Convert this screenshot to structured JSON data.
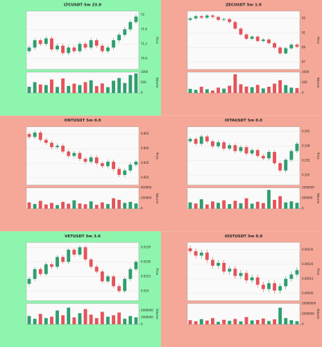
{
  "chart_data": [
    {
      "type": "candlestick",
      "title": "LTCUSDT 5m 23.0",
      "background": "#8ef5ae",
      "up_color": "#2e9e6e",
      "down_color": "#e4545a",
      "ylabel": "Price",
      "volume_label": "Volume",
      "ylim": [
        70.5,
        72.1
      ],
      "yticks": [
        70.8,
        71.2,
        71.6,
        72.0
      ],
      "volume_ylim": [
        0,
        1000
      ],
      "volume_ticks": [
        0,
        500,
        1000
      ],
      "open": [
        71.0,
        71.1,
        71.3,
        71.2,
        71.35,
        71.05,
        71.15,
        70.95,
        71.1,
        71.0,
        71.2,
        71.1,
        71.3,
        71.15,
        71.0,
        71.1,
        71.3,
        71.45,
        71.6,
        71.8
      ],
      "high": [
        71.16,
        71.36,
        71.36,
        71.41,
        71.41,
        71.21,
        71.21,
        71.16,
        71.16,
        71.26,
        71.26,
        71.36,
        71.36,
        71.21,
        71.16,
        71.36,
        71.51,
        71.66,
        71.86,
        72.01
      ],
      "low": [
        70.94,
        71.04,
        71.14,
        71.14,
        70.99,
        70.99,
        70.89,
        70.89,
        70.94,
        70.94,
        71.04,
        71.04,
        71.09,
        70.94,
        70.94,
        71.04,
        71.24,
        71.39,
        71.54,
        71.74
      ],
      "close": [
        71.1,
        71.3,
        71.2,
        71.35,
        71.05,
        71.15,
        70.95,
        71.1,
        71.0,
        71.2,
        71.1,
        71.3,
        71.15,
        71.0,
        71.1,
        71.3,
        71.45,
        71.6,
        71.8,
        71.95
      ],
      "volume": [
        300,
        520,
        410,
        380,
        650,
        290,
        700,
        340,
        450,
        380,
        520,
        610,
        330,
        460,
        280,
        590,
        720,
        480,
        860,
        940
      ]
    },
    {
      "type": "candlestick",
      "title": "ZECUSDT 5m 1.0",
      "background": "#f5a898",
      "up_color": "#2e9e6e",
      "down_color": "#e4545a",
      "ylabel": "Price",
      "volume_label": "Volume",
      "ylim": [
        86,
        94
      ],
      "yticks": [
        87,
        89,
        91,
        93
      ],
      "volume_ylim": [
        0,
        1000
      ],
      "volume_ticks": [
        0,
        500,
        1000
      ],
      "open": [
        92.8,
        93.0,
        93.3,
        93.1,
        93.4,
        93.2,
        92.8,
        92.9,
        92.5,
        91.6,
        90.8,
        90.2,
        90.5,
        89.9,
        90.1,
        89.6,
        89.0,
        88.2,
        88.9,
        89.4
      ],
      "high": [
        93.2,
        93.5,
        93.5,
        93.6,
        93.6,
        93.4,
        93.1,
        93.1,
        92.7,
        91.8,
        91.0,
        90.7,
        90.7,
        90.3,
        90.3,
        89.8,
        89.2,
        89.1,
        89.6,
        89.6
      ],
      "low": [
        92.6,
        92.8,
        92.9,
        92.9,
        93.0,
        92.6,
        92.6,
        92.3,
        91.4,
        90.6,
        90.0,
        90.0,
        89.7,
        89.7,
        89.4,
        88.8,
        88.0,
        88.0,
        88.7,
        88.9
      ],
      "close": [
        93.0,
        93.3,
        93.1,
        93.4,
        93.2,
        92.8,
        92.9,
        92.5,
        91.6,
        90.8,
        90.2,
        90.5,
        89.9,
        90.1,
        89.6,
        89.0,
        88.2,
        88.9,
        89.4,
        89.1
      ],
      "volume": [
        200,
        150,
        300,
        180,
        120,
        260,
        210,
        350,
        900,
        420,
        310,
        280,
        390,
        220,
        300,
        450,
        620,
        380,
        260,
        240
      ]
    },
    {
      "type": "candlestick",
      "title": "ONTUSDT 5m 0.0",
      "background": "#f5a898",
      "up_color": "#2e9e6e",
      "down_color": "#e4545a",
      "ylabel": "Price",
      "volume_label": "Volume",
      "ylim": [
        0.82,
        0.86
      ],
      "yticks": [
        0.825,
        0.835,
        0.845,
        0.855
      ],
      "volume_ylim": [
        0,
        400000
      ],
      "volume_ticks": [
        0,
        200000,
        400000
      ],
      "open": [
        0.855,
        0.853,
        0.856,
        0.851,
        0.849,
        0.846,
        0.847,
        0.843,
        0.84,
        0.842,
        0.838,
        0.836,
        0.839,
        0.835,
        0.833,
        0.836,
        0.831,
        0.827,
        0.83,
        0.834
      ],
      "high": [
        0.8565,
        0.8575,
        0.8575,
        0.8525,
        0.8505,
        0.8485,
        0.8485,
        0.8445,
        0.8435,
        0.8435,
        0.8395,
        0.8405,
        0.8405,
        0.8365,
        0.8375,
        0.8375,
        0.8325,
        0.8315,
        0.8355,
        0.8375
      ],
      "low": [
        0.8515,
        0.8515,
        0.8495,
        0.8475,
        0.8445,
        0.8445,
        0.8415,
        0.8385,
        0.8385,
        0.8365,
        0.8345,
        0.8345,
        0.8335,
        0.8315,
        0.8315,
        0.8295,
        0.8255,
        0.8255,
        0.8285,
        0.8325
      ],
      "close": [
        0.853,
        0.856,
        0.851,
        0.849,
        0.846,
        0.847,
        0.843,
        0.84,
        0.842,
        0.838,
        0.836,
        0.839,
        0.835,
        0.833,
        0.836,
        0.831,
        0.827,
        0.83,
        0.834,
        0.836
      ],
      "volume": [
        120000,
        90000,
        150000,
        80000,
        110000,
        70000,
        130000,
        95000,
        160000,
        100000,
        85000,
        140000,
        75000,
        120000,
        90000,
        200000,
        170000,
        110000,
        130000,
        100000
      ]
    },
    {
      "type": "candlestick",
      "title": "IOTAUSDT 5m 0.0",
      "background": "#f5a898",
      "up_color": "#2e9e6e",
      "down_color": "#e4545a",
      "ylabel": "Price",
      "volume_label": "Volume",
      "ylim": [
        0.25,
        0.262
      ],
      "yticks": [
        0.252,
        0.255,
        0.258,
        0.261
      ],
      "volume_ylim": [
        0,
        1000000
      ],
      "volume_ticks": [
        0,
        500000,
        1000000
      ],
      "open": [
        0.259,
        0.2595,
        0.2585,
        0.26,
        0.259,
        0.258,
        0.2588,
        0.2575,
        0.2582,
        0.257,
        0.2578,
        0.2565,
        0.2572,
        0.256,
        0.2555,
        0.2568,
        0.2545,
        0.253,
        0.2552,
        0.257
      ],
      "high": [
        0.2599,
        0.2599,
        0.2604,
        0.2604,
        0.2594,
        0.2592,
        0.2592,
        0.2586,
        0.2586,
        0.2582,
        0.2582,
        0.2576,
        0.2576,
        0.2564,
        0.2572,
        0.2572,
        0.2549,
        0.2556,
        0.2574,
        0.2589
      ],
      "low": [
        0.2586,
        0.2581,
        0.2581,
        0.2586,
        0.2576,
        0.2576,
        0.2571,
        0.2571,
        0.2566,
        0.2566,
        0.2561,
        0.2561,
        0.2556,
        0.2551,
        0.2551,
        0.2541,
        0.2526,
        0.2526,
        0.2548,
        0.2566
      ],
      "close": [
        0.2595,
        0.2585,
        0.26,
        0.259,
        0.258,
        0.2588,
        0.2575,
        0.2582,
        0.257,
        0.2578,
        0.2565,
        0.2572,
        0.256,
        0.2555,
        0.2568,
        0.2545,
        0.253,
        0.2552,
        0.257,
        0.2585
      ],
      "volume": [
        300000,
        250000,
        450000,
        200000,
        350000,
        280000,
        400000,
        220000,
        380000,
        260000,
        500000,
        240000,
        330000,
        270000,
        900000,
        420000,
        600000,
        300000,
        350000,
        280000
      ]
    },
    {
      "type": "candlestick",
      "title": "VETUSDT 5m 3.0",
      "background": "#8ef5ae",
      "up_color": "#2e9e6e",
      "down_color": "#e4545a",
      "ylabel": "Price",
      "volume_label": "Volume",
      "ylim": [
        0.0228,
        0.024
      ],
      "yticks": [
        0.023,
        0.0233,
        0.0236,
        0.0239
      ],
      "volume_ylim": [
        0,
        3000000
      ],
      "volume_ticks": [
        0,
        1000000,
        2000000
      ],
      "open": [
        0.02315,
        0.02325,
        0.02345,
        0.02335,
        0.02355,
        0.0235,
        0.0237,
        0.0236,
        0.02385,
        0.02375,
        0.0239,
        0.02365,
        0.0235,
        0.0234,
        0.0232,
        0.0233,
        0.0231,
        0.023,
        0.02325,
        0.02345
      ],
      "high": [
        0.02329,
        0.02349,
        0.02349,
        0.02359,
        0.02359,
        0.02374,
        0.02374,
        0.02389,
        0.02389,
        0.02394,
        0.02394,
        0.02369,
        0.02354,
        0.02344,
        0.02334,
        0.02334,
        0.02314,
        0.02329,
        0.02349,
        0.02364
      ],
      "low": [
        0.02311,
        0.02321,
        0.02331,
        0.02331,
        0.02346,
        0.02346,
        0.02356,
        0.02356,
        0.02371,
        0.02371,
        0.02361,
        0.02346,
        0.02336,
        0.02316,
        0.02316,
        0.02306,
        0.02296,
        0.02296,
        0.02321,
        0.02341
      ],
      "close": [
        0.02325,
        0.02345,
        0.02335,
        0.02355,
        0.0235,
        0.0237,
        0.0236,
        0.02385,
        0.02375,
        0.0239,
        0.02365,
        0.0235,
        0.0234,
        0.0232,
        0.0233,
        0.0231,
        0.023,
        0.02325,
        0.02345,
        0.0236
      ],
      "volume": [
        1200000,
        800000,
        1500000,
        900000,
        1100000,
        2000000,
        1300000,
        2400000,
        1000000,
        1600000,
        2200000,
        1400000,
        900000,
        1800000,
        1100000,
        1300000,
        1700000,
        800000,
        1200000,
        1000000
      ]
    },
    {
      "type": "candlestick",
      "title": "IOSTUSDT 5m 0.0",
      "background": "#f5a898",
      "up_color": "#2e9e6e",
      "down_color": "#e4545a",
      "ylabel": "Price",
      "volume_label": "Volume",
      "ylim": [
        0.005,
        0.0054
      ],
      "yticks": [
        0.00505,
        0.00515,
        0.00525,
        0.00535
      ],
      "volume_ylim": [
        0,
        10000000
      ],
      "volume_ticks": [
        0,
        5000000,
        10000000
      ],
      "open": [
        0.00536,
        0.00534,
        0.00531,
        0.00533,
        0.00528,
        0.00524,
        0.00526,
        0.0052,
        0.00522,
        0.00517,
        0.00519,
        0.00514,
        0.00516,
        0.00511,
        0.00508,
        0.00512,
        0.00507,
        0.0051,
        0.00515,
        0.00518
      ],
      "high": [
        0.00538,
        0.00536,
        0.00535,
        0.00535,
        0.0053,
        0.00528,
        0.00528,
        0.00524,
        0.00524,
        0.00521,
        0.00521,
        0.00518,
        0.00518,
        0.00513,
        0.00514,
        0.00514,
        0.00512,
        0.00517,
        0.0052,
        0.00523
      ],
      "low": [
        0.00532,
        0.00529,
        0.00529,
        0.00526,
        0.00522,
        0.00522,
        0.00518,
        0.00518,
        0.00515,
        0.00515,
        0.00512,
        0.00512,
        0.00509,
        0.00506,
        0.00506,
        0.00505,
        0.00505,
        0.00508,
        0.00513,
        0.00516
      ],
      "close": [
        0.00534,
        0.00531,
        0.00533,
        0.00528,
        0.00524,
        0.00526,
        0.0052,
        0.00522,
        0.00517,
        0.00519,
        0.00514,
        0.00516,
        0.00511,
        0.00508,
        0.00512,
        0.00507,
        0.0051,
        0.00515,
        0.00518,
        0.00521
      ],
      "volume": [
        2000000,
        1500000,
        2500000,
        1800000,
        3000000,
        1200000,
        2200000,
        1700000,
        2600000,
        1400000,
        3500000,
        1900000,
        2100000,
        2800000,
        1600000,
        2400000,
        8000000,
        3000000,
        2000000,
        1500000
      ]
    }
  ]
}
